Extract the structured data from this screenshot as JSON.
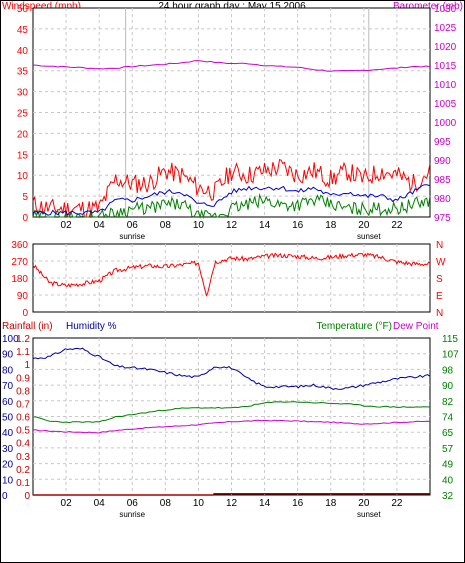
{
  "title": "24 hour graph day : May 15 2006",
  "colors": {
    "wind": "#ff0000",
    "gust": "#ff0000",
    "avg": "#0000cc",
    "low": "#008000",
    "baro": "#cc00cc",
    "dir": "#ff0000",
    "humidity": "#0000aa",
    "temperature": "#008000",
    "dewpoint": "#cc00cc",
    "rain": "#aa0000",
    "rain_label": "#cc0000",
    "hum_label": "#0000aa",
    "temp_label": "#008000",
    "dew_label": "#cc00cc"
  },
  "top": {
    "left_label": "Windspeed (mph)",
    "right_label": "Barometer (mb)",
    "left_ticks": [
      "0",
      "5",
      "10",
      "15",
      "20",
      "25",
      "30",
      "35",
      "40",
      "45",
      "50"
    ],
    "right_ticks": [
      "975",
      "980",
      "985",
      "990",
      "995",
      "1000",
      "1005",
      "1010",
      "1015",
      "1020",
      "1025",
      "1030"
    ],
    "x_ticks": [
      "02",
      "04",
      "06",
      "08",
      "10",
      "12",
      "14",
      "16",
      "18",
      "20",
      "22"
    ],
    "sunrise": "sunrise",
    "sunset": "sunset"
  },
  "middle": {
    "left_ticks": [
      "0",
      "90",
      "180",
      "270",
      "360"
    ],
    "compass": [
      "N",
      "W",
      "S",
      "E",
      "N"
    ]
  },
  "bottom": {
    "rain_label": "Rainfall (in)",
    "hum_label": "Humidity %",
    "temp_label": "Temperature (°F)",
    "dew_label": "Dew Point",
    "hum_ticks": [
      "0",
      "10",
      "20",
      "30",
      "40",
      "50",
      "60",
      "70",
      "80",
      "90",
      "100"
    ],
    "rain_ticks": [
      "0",
      "0.1",
      "0.2",
      "0.3",
      "0.4",
      "0.5",
      "0.6",
      "0.7",
      "0.8",
      "0.9",
      "1",
      "1.1",
      "1.2"
    ],
    "temp_ticks": [
      "32",
      "40",
      "49",
      "57",
      "65",
      "74",
      "82",
      "90",
      "98",
      "107",
      "115"
    ],
    "x_ticks": [
      "02",
      "04",
      "06",
      "08",
      "10",
      "12",
      "14",
      "16",
      "18",
      "20",
      "22"
    ],
    "sunrise": "sunrise",
    "sunset": "sunset"
  },
  "chart_data": [
    {
      "type": "line",
      "title": "24 hour graph day : May 15 2006",
      "ylabel": "Windspeed (mph)",
      "y2label": "Barometer (mb)",
      "ylim": [
        0,
        50
      ],
      "y2lim": [
        975,
        1030
      ],
      "xlim": [
        0,
        24
      ],
      "series": [
        {
          "name": "Barometer (mb)",
          "axis": "right",
          "x": [
            0,
            1,
            2,
            3,
            4,
            5,
            6,
            7,
            8,
            9,
            10,
            11,
            12,
            13,
            14,
            15,
            16,
            17,
            18,
            19,
            20,
            21,
            22,
            23,
            24
          ],
          "values": [
            1015.0,
            1014.7,
            1014.5,
            1014.3,
            1014.0,
            1014.2,
            1014.6,
            1014.9,
            1015.2,
            1015.6,
            1016.2,
            1015.7,
            1015.4,
            1015.4,
            1014.9,
            1014.6,
            1014.4,
            1013.8,
            1013.4,
            1013.4,
            1013.6,
            1013.9,
            1014.2,
            1014.6,
            1014.6
          ]
        },
        {
          "name": "",
          "axis": "left",
          "style": "gust",
          "x": [
            0,
            1,
            2,
            3,
            4,
            5,
            6,
            7,
            8,
            9,
            10,
            11,
            12,
            13,
            14,
            15,
            16,
            17,
            18,
            19,
            20,
            21,
            22,
            23,
            24
          ],
          "values": [
            3,
            2,
            2,
            2,
            2,
            9,
            8,
            8,
            11,
            10,
            7,
            6,
            11,
            10,
            11,
            12,
            10,
            11,
            9,
            11,
            9,
            11,
            10,
            8,
            11
          ]
        },
        {
          "name": "",
          "axis": "left",
          "style": "average",
          "x": [
            0,
            1,
            2,
            3,
            4,
            5,
            6,
            7,
            8,
            9,
            10,
            11,
            12,
            13,
            14,
            15,
            16,
            17,
            18,
            19,
            20,
            21,
            22,
            23,
            24
          ],
          "values": [
            1,
            1,
            1,
            1,
            1,
            4,
            4,
            5,
            6,
            6,
            3,
            3,
            6,
            7,
            7,
            7,
            6,
            7,
            5,
            6,
            5,
            5,
            4,
            6,
            8
          ]
        },
        {
          "name": "",
          "axis": "left",
          "style": "low",
          "x": [
            0,
            1,
            2,
            3,
            4,
            5,
            6,
            7,
            8,
            9,
            10,
            11,
            12,
            13,
            14,
            15,
            16,
            17,
            18,
            19,
            20,
            21,
            22,
            23,
            24
          ],
          "values": [
            0,
            0,
            0,
            0,
            0,
            1,
            2,
            2,
            3,
            3,
            0,
            0,
            2,
            3,
            4,
            3,
            3,
            4,
            3,
            2,
            2,
            2,
            2,
            3,
            4
          ]
        }
      ]
    },
    {
      "type": "line",
      "ylim": [
        0,
        360
      ],
      "xlim": [
        0,
        24
      ],
      "series": [
        {
          "name": "",
          "style": "direction",
          "x": [
            0,
            1,
            2,
            3,
            4,
            5,
            6,
            7,
            8,
            9,
            10,
            10.5,
            11,
            12,
            13,
            14,
            15,
            16,
            17,
            18,
            19,
            20,
            21,
            22,
            23,
            24
          ],
          "values": [
            250,
            155,
            140,
            150,
            165,
            220,
            235,
            245,
            240,
            250,
            260,
            90,
            265,
            285,
            280,
            295,
            300,
            295,
            285,
            290,
            300,
            305,
            290,
            265,
            255,
            255
          ]
        }
      ]
    },
    {
      "type": "line",
      "ylabel": "Humidity %",
      "y2label": "Temperature (°F)",
      "ylim": [
        0,
        100
      ],
      "y2lim": [
        32,
        115
      ],
      "rain_lim": [
        0,
        1.2
      ],
      "xlim": [
        0,
        24
      ],
      "series": [
        {
          "name": "Humidity %",
          "axis": "left",
          "x": [
            0,
            1,
            2,
            3,
            4,
            5,
            6,
            7,
            8,
            9,
            10,
            11,
            12,
            13,
            14,
            15,
            16,
            17,
            18,
            19,
            20,
            21,
            22,
            23,
            24
          ],
          "values": [
            87,
            88,
            93,
            93,
            88,
            82,
            81,
            80,
            78,
            76,
            75,
            82,
            81,
            74,
            69,
            69,
            69,
            70,
            68,
            68,
            70,
            72,
            74,
            75,
            76
          ]
        },
        {
          "name": "Temperature (°F)",
          "axis": "right",
          "x": [
            0,
            1,
            2,
            3,
            4,
            5,
            6,
            7,
            8,
            9,
            10,
            11,
            12,
            13,
            14,
            15,
            16,
            17,
            18,
            19,
            20,
            21,
            22,
            23,
            24
          ],
          "values": [
            73.5,
            71.0,
            70.5,
            70.6,
            70.5,
            73.3,
            74.5,
            75.8,
            77.0,
            77.8,
            78.1,
            78.1,
            77.9,
            79.0,
            80.6,
            81.3,
            81.2,
            80.8,
            80.5,
            80.1,
            79.2,
            78.7,
            78.5,
            78.5,
            78.5
          ]
        },
        {
          "name": "Dew Point",
          "axis": "right",
          "x": [
            0,
            1,
            2,
            3,
            4,
            5,
            6,
            7,
            8,
            9,
            10,
            11,
            12,
            13,
            14,
            15,
            16,
            17,
            18,
            19,
            20,
            21,
            22,
            23,
            24
          ],
          "values": [
            66.3,
            65.8,
            65.4,
            65.2,
            65.0,
            66.1,
            66.9,
            67.6,
            68.1,
            68.6,
            69.2,
            70.0,
            70.8,
            71.1,
            71.4,
            71.3,
            71.1,
            70.7,
            70.5,
            69.9,
            69.6,
            69.9,
            70.4,
            70.7,
            71.0
          ]
        },
        {
          "name": "Rainfall (in)",
          "axis": "rain",
          "x": [
            0,
            10.9,
            10.95,
            24
          ],
          "values": [
            0,
            0,
            0.01,
            0.01
          ]
        }
      ]
    }
  ]
}
